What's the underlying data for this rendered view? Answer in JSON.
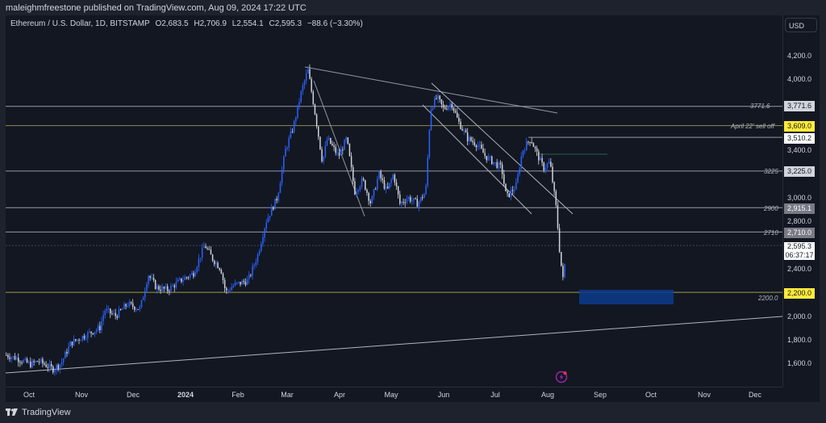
{
  "header": {
    "published": "maleighmfreestone published on TradingView.com, Aug 09, 2024 17:22 UTC"
  },
  "legend": {
    "symbol": "Ethereum / U.S. Dollar, 1D, BITSTAMP",
    "open": "O2,683.5",
    "high": "H2,706.9",
    "low": "L2,554.1",
    "close": "C2,595.3",
    "change": "−88.6 (−3.30%)"
  },
  "currency_button": "USD",
  "brand": "TradingView",
  "colors": {
    "background": "#131722",
    "up_candle": "#2962ff",
    "down_candle": "#d1d4dc",
    "yellow_level": "#ffeb3b",
    "grey_level": "#b2b5be",
    "zone": "#0d3b8c"
  },
  "price_axis": {
    "ticks": [
      "4,200.0",
      "4,000.0",
      "3,400.0",
      "3,000.0",
      "2,800.0",
      "2,400.0",
      "2,000.0",
      "1,800.0",
      "1,600.0"
    ],
    "labels": [
      {
        "value": "3,771.6",
        "style": "light"
      },
      {
        "value": "3,609.0",
        "style": "yellow"
      },
      {
        "value": "3,510.2",
        "style": "white"
      },
      {
        "value": "3,225.0",
        "style": "light"
      },
      {
        "value": "2,915.1",
        "style": "grey"
      },
      {
        "value": "2,710.0",
        "style": "grey"
      },
      {
        "value": "2,595.3",
        "style": "white"
      },
      {
        "value": "06:37:17",
        "style": "white"
      },
      {
        "value": "2,200.0",
        "style": "yellow"
      }
    ]
  },
  "line_labels": {
    "l3771": "3771.6",
    "sell_off": "April 22' sell off",
    "l3225": "3225",
    "l2900": "2900",
    "l2710": "2710",
    "l2200": "2200.0"
  },
  "time_axis": [
    "Oct",
    "Nov",
    "Dec",
    "2024",
    "Feb",
    "Mar",
    "Apr",
    "May",
    "Jun",
    "Jul",
    "Aug",
    "Sep",
    "Oct",
    "Nov",
    "Dec"
  ],
  "chart_data": {
    "type": "candlestick",
    "title": "Ethereum / U.S. Dollar, 1D, BITSTAMP",
    "xlabel": "",
    "ylabel": "USD",
    "ylim": [
      1450,
      4350
    ],
    "x_ticks": [
      "Oct",
      "Nov",
      "Dec",
      "2024",
      "Feb",
      "Mar",
      "Apr",
      "May",
      "Jun",
      "Jul",
      "Aug",
      "Sep",
      "Oct",
      "Nov",
      "Dec"
    ],
    "approx_closes_by_month_start": {
      "Oct 2023": 1670,
      "Nov 2023": 1810,
      "Dec 2023": 2090,
      "Jan 2024": 2300,
      "Feb 2024": 2280,
      "Mar 2024": 3400,
      "Apr 2024": 3200,
      "May 2024": 3000,
      "Jun 2024": 3800,
      "Jul 2024": 3300,
      "Aug 2024": 2980,
      "Aug 09 2024": 2595.3
    },
    "peaks": {
      "Mar 2024 high": 4090,
      "Jun 2024 high": 3880,
      "Aug 05 2024 low": 2120
    },
    "horizontal_levels": [
      3771.6,
      3609.0,
      3510.2,
      3225.0,
      2915.1,
      2710.0,
      2200.0
    ],
    "last": {
      "open": 2683.5,
      "high": 2706.9,
      "low": 2554.1,
      "close": 2595.3,
      "change": -88.6,
      "change_pct": -3.3
    },
    "demand_zone": {
      "from": 2130,
      "to": 2230
    }
  }
}
